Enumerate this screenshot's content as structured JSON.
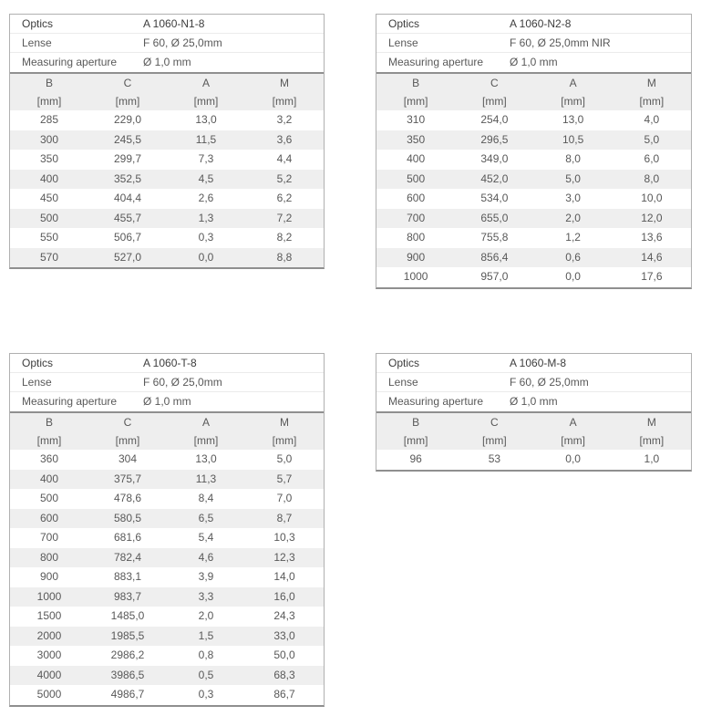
{
  "style": {
    "outer_border": "#b0b0b0",
    "heavy_rule": "#8f8f8f",
    "stripe_color": "#efefef",
    "header_bg": "#eeeeee",
    "text_color": "#595959",
    "text_dark": "#3d3d3d",
    "background": "#ffffff"
  },
  "tables": [
    {
      "info": [
        {
          "label": "Optics",
          "value": "A 1060-N1-8"
        },
        {
          "label": "Lense",
          "value": "F 60, Ø 25,0mm"
        },
        {
          "label": "Measuring aperture",
          "value": "Ø 1,0 mm"
        }
      ],
      "columns": [
        "B",
        "C",
        "A",
        "M"
      ],
      "units": [
        "[mm]",
        "[mm]",
        "[mm]",
        "[mm]"
      ],
      "rows": [
        [
          "285",
          "229,0",
          "13,0",
          "3,2"
        ],
        [
          "300",
          "245,5",
          "11,5",
          "3,6"
        ],
        [
          "350",
          "299,7",
          "7,3",
          "4,4"
        ],
        [
          "400",
          "352,5",
          "4,5",
          "5,2"
        ],
        [
          "450",
          "404,4",
          "2,6",
          "6,2"
        ],
        [
          "500",
          "455,7",
          "1,3",
          "7,2"
        ],
        [
          "550",
          "506,7",
          "0,3",
          "8,2"
        ],
        [
          "570",
          "527,0",
          "0,0",
          "8,8"
        ]
      ]
    },
    {
      "info": [
        {
          "label": "Optics",
          "value": "A 1060-N2-8"
        },
        {
          "label": "Lense",
          "value": "F 60, Ø 25,0mm NIR"
        },
        {
          "label": "Measuring aperture",
          "value": "Ø 1,0 mm"
        }
      ],
      "columns": [
        "B",
        "C",
        "A",
        "M"
      ],
      "units": [
        "[mm]",
        "[mm]",
        "[mm]",
        "[mm]"
      ],
      "rows": [
        [
          "310",
          "254,0",
          "13,0",
          "4,0"
        ],
        [
          "350",
          "296,5",
          "10,5",
          "5,0"
        ],
        [
          "400",
          "349,0",
          "8,0",
          "6,0"
        ],
        [
          "500",
          "452,0",
          "5,0",
          "8,0"
        ],
        [
          "600",
          "534,0",
          "3,0",
          "10,0"
        ],
        [
          "700",
          "655,0",
          "2,0",
          "12,0"
        ],
        [
          "800",
          "755,8",
          "1,2",
          "13,6"
        ],
        [
          "900",
          "856,4",
          "0,6",
          "14,6"
        ],
        [
          "1000",
          "957,0",
          "0,0",
          "17,6"
        ]
      ]
    },
    {
      "info": [
        {
          "label": "Optics",
          "value": "A 1060-T-8"
        },
        {
          "label": "Lense",
          "value": "F 60, Ø 25,0mm"
        },
        {
          "label": "Measuring aperture",
          "value": "Ø 1,0 mm"
        }
      ],
      "columns": [
        "B",
        "C",
        "A",
        "M"
      ],
      "units": [
        "[mm]",
        "[mm]",
        "[mm]",
        "[mm]"
      ],
      "rows": [
        [
          "360",
          "304",
          "13,0",
          "5,0"
        ],
        [
          "400",
          "375,7",
          "11,3",
          "5,7"
        ],
        [
          "500",
          "478,6",
          "8,4",
          "7,0"
        ],
        [
          "600",
          "580,5",
          "6,5",
          "8,7"
        ],
        [
          "700",
          "681,6",
          "5,4",
          "10,3"
        ],
        [
          "800",
          "782,4",
          "4,6",
          "12,3"
        ],
        [
          "900",
          "883,1",
          "3,9",
          "14,0"
        ],
        [
          "1000",
          "983,7",
          "3,3",
          "16,0"
        ],
        [
          "1500",
          "1485,0",
          "2,0",
          "24,3"
        ],
        [
          "2000",
          "1985,5",
          "1,5",
          "33,0"
        ],
        [
          "3000",
          "2986,2",
          "0,8",
          "50,0"
        ],
        [
          "4000",
          "3986,5",
          "0,5",
          "68,3"
        ],
        [
          "5000",
          "4986,7",
          "0,3",
          "86,7"
        ]
      ]
    },
    {
      "info": [
        {
          "label": "Optics",
          "value": "A 1060-M-8"
        },
        {
          "label": "Lense",
          "value": "F 60, Ø 25,0mm"
        },
        {
          "label": "Measuring aperture",
          "value": "Ø 1,0 mm"
        }
      ],
      "columns": [
        "B",
        "C",
        "A",
        "M"
      ],
      "units": [
        "[mm]",
        "[mm]",
        "[mm]",
        "[mm]"
      ],
      "rows": [
        [
          "96",
          "53",
          "0,0",
          "1,0"
        ]
      ]
    }
  ]
}
